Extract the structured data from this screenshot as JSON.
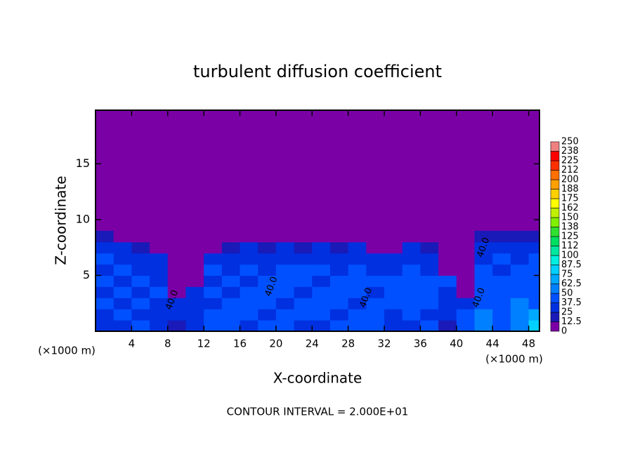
{
  "chart_data": {
    "type": "heatmap",
    "title": "turbulent diffusion coefficient",
    "xlabel": "X-coordinate",
    "ylabel": "Z-coordinate",
    "x_unit_label": "(×1000 m)",
    "y_unit_label": "(×1000 m)",
    "footer": "CONTOUR INTERVAL = 2.000E+01",
    "xlim": [
      0,
      49.2
    ],
    "ylim": [
      0,
      19.8
    ],
    "xticks": [
      4,
      8,
      12,
      16,
      20,
      24,
      28,
      32,
      36,
      40,
      44,
      48
    ],
    "yticks": [
      5,
      10,
      15
    ],
    "x": [
      1,
      3,
      5,
      7,
      9,
      11,
      13,
      15,
      17,
      19,
      21,
      23,
      25,
      27,
      29,
      31,
      33,
      35,
      37,
      39,
      41,
      43,
      45,
      47,
      49
    ],
    "y": [
      0.5,
      1.5,
      2.5,
      3.5,
      4.5,
      5.5,
      6.5,
      7.5,
      8.5
    ],
    "z": [
      [
        30,
        35,
        40,
        25,
        20,
        30,
        45,
        40,
        35,
        40,
        45,
        30,
        35,
        40,
        45,
        40,
        30,
        35,
        40,
        20,
        45,
        55,
        40,
        60,
        80
      ],
      [
        35,
        40,
        35,
        30,
        25,
        35,
        40,
        45,
        40,
        35,
        40,
        45,
        40,
        35,
        40,
        45,
        35,
        40,
        35,
        25,
        40,
        50,
        45,
        55,
        70
      ],
      [
        40,
        35,
        40,
        35,
        30,
        30,
        35,
        40,
        45,
        40,
        35,
        40,
        45,
        40,
        35,
        40,
        40,
        45,
        40,
        30,
        35,
        45,
        40,
        50,
        45
      ],
      [
        35,
        40,
        35,
        40,
        0,
        35,
        40,
        35,
        40,
        45,
        40,
        35,
        40,
        45,
        40,
        35,
        45,
        40,
        45,
        35,
        0,
        40,
        45,
        40,
        45
      ],
      [
        40,
        35,
        40,
        35,
        0,
        0,
        35,
        40,
        35,
        40,
        45,
        40,
        35,
        40,
        45,
        40,
        40,
        45,
        40,
        40,
        0,
        45,
        40,
        45,
        40
      ],
      [
        35,
        40,
        35,
        30,
        0,
        0,
        40,
        35,
        40,
        35,
        40,
        45,
        40,
        35,
        40,
        35,
        35,
        40,
        35,
        0,
        0,
        40,
        35,
        40,
        45
      ],
      [
        40,
        35,
        30,
        25,
        0,
        0,
        30,
        35,
        30,
        35,
        30,
        35,
        30,
        35,
        30,
        30,
        30,
        35,
        30,
        0,
        0,
        35,
        40,
        35,
        40
      ],
      [
        30,
        25,
        20,
        0,
        0,
        0,
        0,
        20,
        25,
        20,
        25,
        20,
        25,
        20,
        25,
        0,
        0,
        25,
        20,
        0,
        0,
        30,
        35,
        30,
        30
      ],
      [
        15,
        0,
        0,
        0,
        0,
        0,
        0,
        0,
        0,
        0,
        0,
        0,
        0,
        0,
        0,
        0,
        0,
        0,
        0,
        0,
        0,
        15,
        15,
        15,
        15
      ]
    ],
    "colorbar": {
      "levels": [
        0,
        12.5,
        25,
        37.5,
        50,
        62.5,
        75,
        87.5,
        100,
        112,
        125,
        138,
        150,
        162,
        175,
        188,
        200,
        212,
        225,
        238,
        250
      ],
      "colors": [
        "#7a00a6",
        "#1a1ab8",
        "#0030e0",
        "#0050ff",
        "#0080ff",
        "#00a8ff",
        "#00d0ff",
        "#00f0e0",
        "#00e8a0",
        "#00e060",
        "#30e030",
        "#80f000",
        "#c0f000",
        "#ffff00",
        "#ffd000",
        "#ffa000",
        "#ff7000",
        "#ff3000",
        "#ff0000",
        "#f08080"
      ]
    },
    "contour_labels": [
      {
        "text": "40.0",
        "x": 8.5,
        "y": 2.8
      },
      {
        "text": "40.0",
        "x": 19.5,
        "y": 4
      },
      {
        "text": "40.0",
        "x": 30,
        "y": 3
      },
      {
        "text": "40.0",
        "x": 42.5,
        "y": 3
      },
      {
        "text": "40.0",
        "x": 43,
        "y": 7.5
      }
    ]
  }
}
